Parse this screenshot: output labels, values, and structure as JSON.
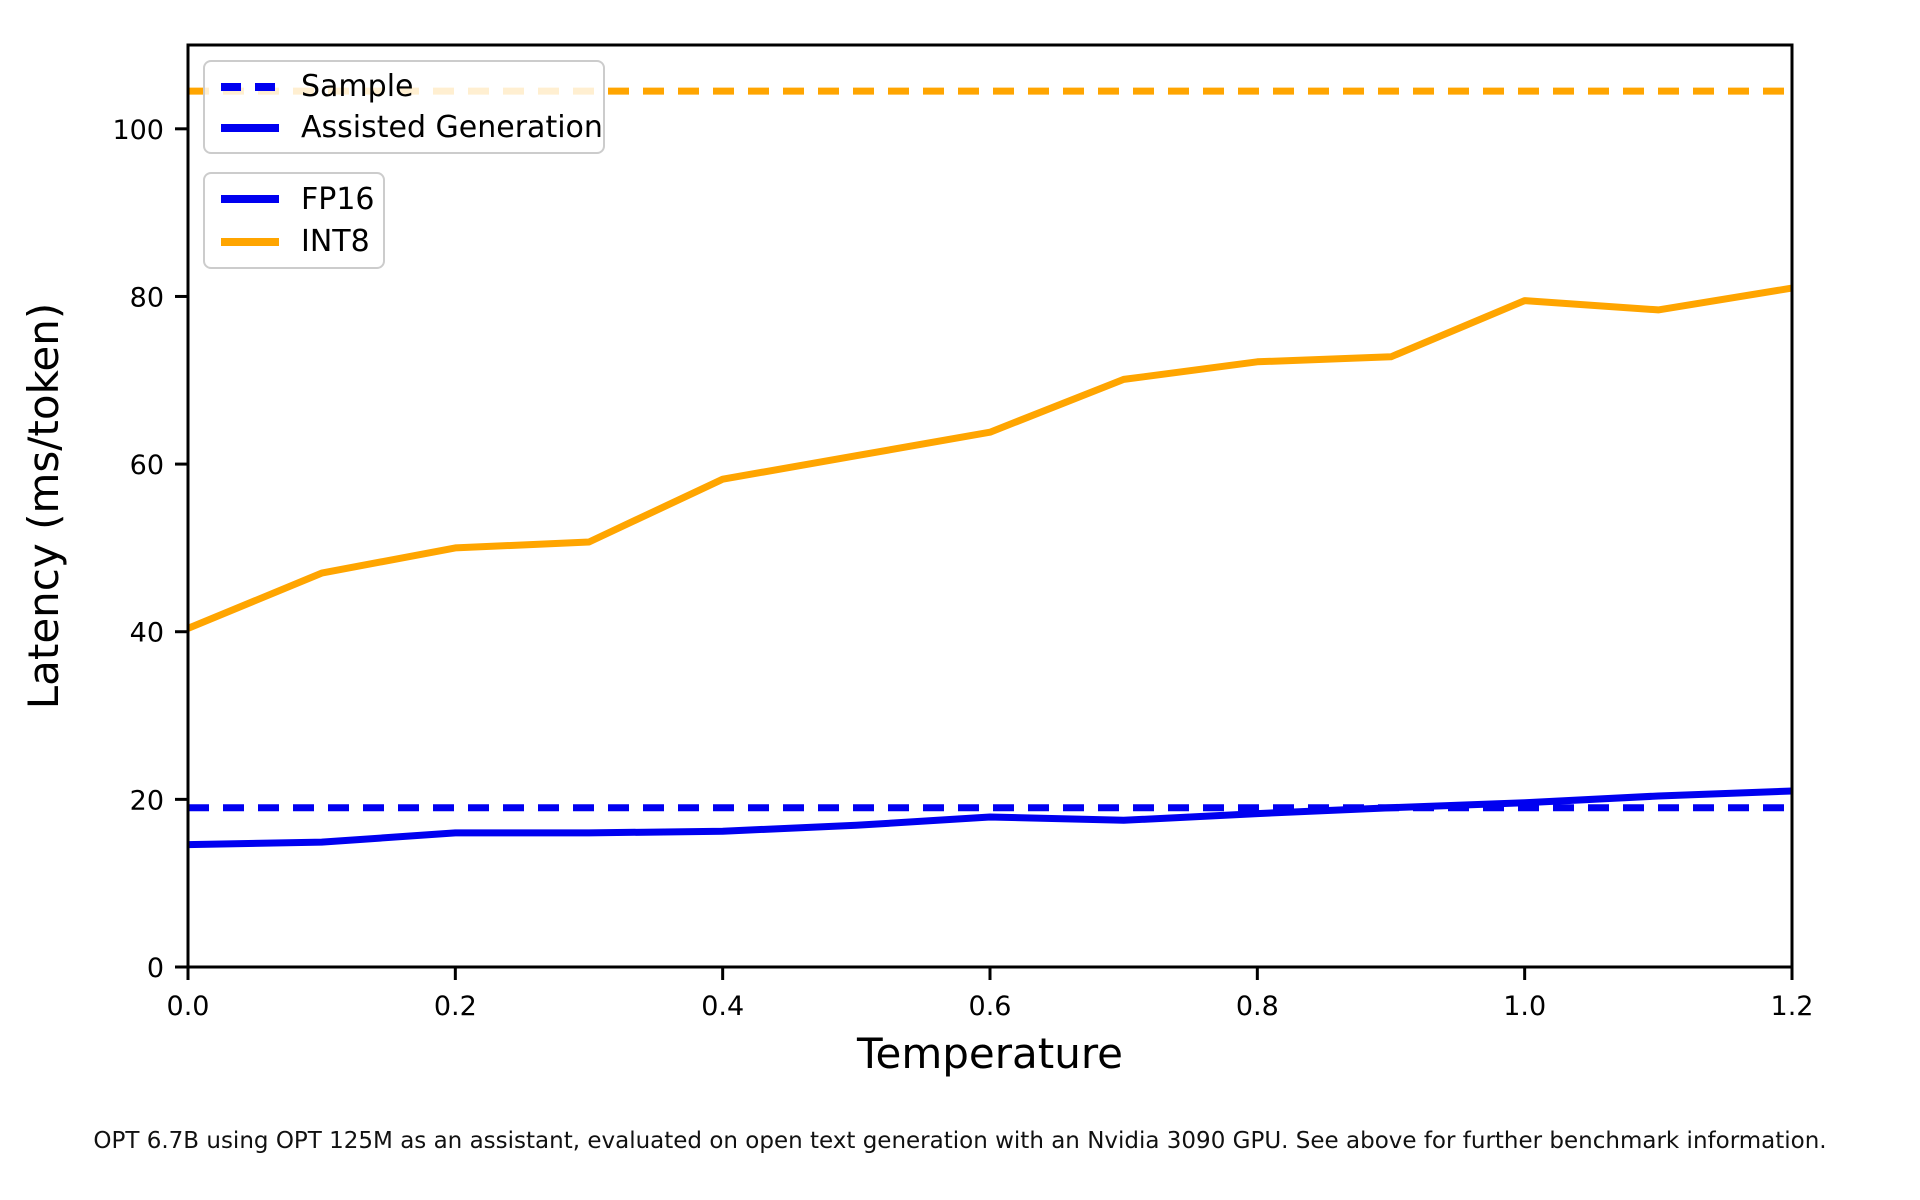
{
  "figure": {
    "caption": "OPT 6.7B using OPT 125M as an assistant, evaluated on open text generation with an Nvidia 3090 GPU. See above for further benchmark information."
  },
  "colors": {
    "blue": "#0000f0",
    "orange": "#ffa500",
    "axis": "#000000",
    "legend_border": "#cccccc"
  },
  "chart_data": {
    "type": "line",
    "title": "",
    "xlabel": "Temperature",
    "ylabel": "Latency (ms/token)",
    "xlim": [
      0.0,
      1.2
    ],
    "ylim": [
      0,
      110
    ],
    "grid": false,
    "legend_position": "upper left",
    "xticks": [
      0.0,
      0.2,
      0.4,
      0.6,
      0.8,
      1.0,
      1.2
    ],
    "xtick_labels": [
      "0.0",
      "0.2",
      "0.4",
      "0.6",
      "0.8",
      "1.0",
      "1.2"
    ],
    "yticks": [
      0,
      20,
      40,
      60,
      80,
      100
    ],
    "ytick_labels": [
      "0",
      "20",
      "40",
      "60",
      "80",
      "100"
    ],
    "x": [
      0.0,
      0.1,
      0.2,
      0.3,
      0.4,
      0.5,
      0.6,
      0.7,
      0.8,
      0.9,
      1.0,
      1.1,
      1.2
    ],
    "series": [
      {
        "name": "INT8 Sample",
        "precision": "INT8",
        "method": "Sample",
        "color": "#ffa500",
        "dash": true,
        "constant": 104.5
      },
      {
        "name": "FP16 Sample",
        "precision": "FP16",
        "method": "Sample",
        "color": "#0000f0",
        "dash": true,
        "constant": 19.0
      },
      {
        "name": "INT8 Assisted Generation",
        "precision": "INT8",
        "method": "Assisted Generation",
        "color": "#ffa500",
        "dash": false,
        "values": [
          40.4,
          47.0,
          50.0,
          50.7,
          58.2,
          61.0,
          63.8,
          70.1,
          72.2,
          72.8,
          79.5,
          78.4,
          81.0
        ]
      },
      {
        "name": "FP16 Assisted Generation",
        "precision": "FP16",
        "method": "Assisted Generation",
        "color": "#0000f0",
        "dash": false,
        "values": [
          14.6,
          14.9,
          16.0,
          16.0,
          16.2,
          16.9,
          17.9,
          17.5,
          18.3,
          19.0,
          19.6,
          20.4,
          21.0
        ]
      }
    ],
    "legends": [
      {
        "entries": [
          {
            "label": "Sample",
            "color": "#0000f0",
            "dash": true
          },
          {
            "label": "Assisted Generation",
            "color": "#0000f0",
            "dash": false
          }
        ]
      },
      {
        "entries": [
          {
            "label": "FP16",
            "color": "#0000f0",
            "dash": false
          },
          {
            "label": "INT8",
            "color": "#ffa500",
            "dash": false
          }
        ]
      }
    ]
  }
}
